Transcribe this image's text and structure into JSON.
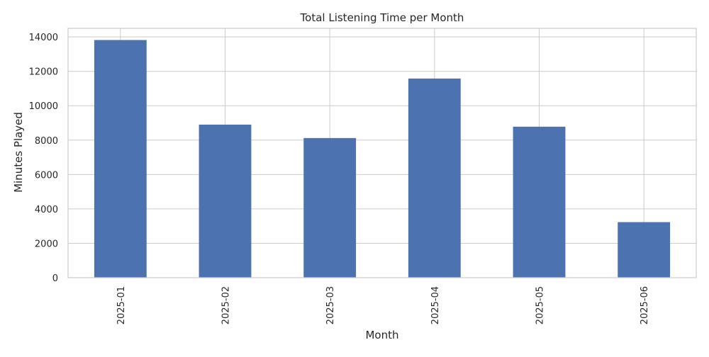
{
  "chart_data": {
    "type": "bar",
    "title": "Total Listening Time per Month",
    "xlabel": "Month",
    "ylabel": "Minutes Played",
    "categories": [
      "2025-01",
      "2025-02",
      "2025-03",
      "2025-04",
      "2025-05",
      "2025-06"
    ],
    "values": [
      13820,
      8900,
      8120,
      11580,
      8780,
      3230
    ],
    "ylim": [
      0,
      14500
    ],
    "yticks": [
      0,
      2000,
      4000,
      6000,
      8000,
      10000,
      12000,
      14000
    ],
    "ytick_labels": [
      "0",
      "2000",
      "4000",
      "6000",
      "8000",
      "10000",
      "12000",
      "14000"
    ],
    "grid": true,
    "bar_color": "#4c72b0",
    "grid_color": "#cccccc",
    "legend": "none"
  }
}
